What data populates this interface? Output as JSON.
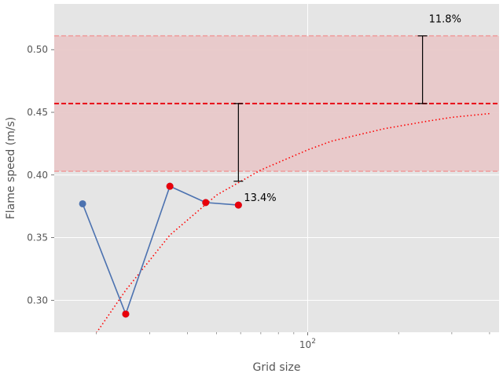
{
  "chart_data": {
    "type": "line",
    "xlabel": "Grid size",
    "ylabel": "Flame speed (m/s)",
    "xscale": "log",
    "xlim": [
      14.5,
      430
    ],
    "ylim": [
      0.2745,
      0.5365
    ],
    "x_tick_labels": [
      {
        "value": 100,
        "label": "10^2"
      }
    ],
    "y_ticks": [
      0.3,
      0.35,
      0.4,
      0.45,
      0.5
    ],
    "y_tick_labels": [
      "0.30",
      "0.35",
      "0.40",
      "0.45",
      "0.50"
    ],
    "grid": true,
    "series": [
      {
        "style": "solid line with markers",
        "color": "#4c72b0",
        "x": [
          18,
          25,
          35,
          46,
          59
        ],
        "y": [
          0.377,
          0.289,
          0.391,
          0.378,
          0.376
        ]
      },
      {
        "style": "markers used for fit",
        "color": "#e8000b",
        "x": [
          25,
          35,
          46,
          59
        ],
        "y": [
          0.289,
          0.391,
          0.378,
          0.376
        ]
      },
      {
        "style": "dotted fit curve",
        "color": "#ff0000",
        "x": [
          20,
          25,
          35,
          50,
          70,
          100,
          120,
          180,
          250,
          300,
          400
        ],
        "y": [
          0.274,
          0.308,
          0.352,
          0.384,
          0.404,
          0.42,
          0.427,
          0.437,
          0.443,
          0.446,
          0.449
        ]
      }
    ],
    "reference": {
      "value": 0.457,
      "lower": 0.403,
      "upper": 0.511,
      "color": "#e8000b",
      "band_color": "#e8c6c8"
    },
    "error_bars": [
      {
        "x": 59,
        "y_low": 0.395,
        "y_high": 0.457,
        "label": "13.4%"
      },
      {
        "x": 240,
        "y_low": 0.457,
        "y_high": 0.511,
        "label": "11.8%"
      }
    ]
  }
}
